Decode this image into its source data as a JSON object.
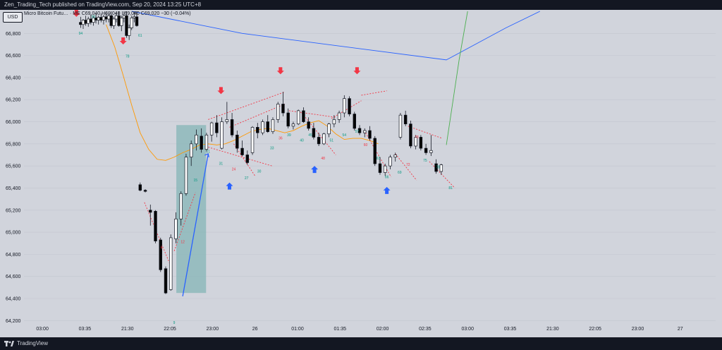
{
  "header": {
    "published": "Zen_Trading_Tech published on TradingView.com, Sep 20, 2024 13:25 UTC+8"
  },
  "legend": {
    "symbol": "Micro Bitcoin Futu… · ME",
    "ohlc": "C69,040  H69,040  L69,040  C69,020  −30 (−0.04%)",
    "currency": "USD"
  },
  "footer": {
    "brand": "TradingView"
  },
  "colors": {
    "up": "#ffffff",
    "down": "#000000",
    "bull_arrow": "#2962ff",
    "bear_arrow": "#f23645",
    "box": "#80b3b3",
    "dotted": "#f23645",
    "ema": "#ff9800",
    "blue_line": "#2962ff"
  },
  "chart_data": {
    "type": "candlestick",
    "y_ticks": [
      64200,
      64400,
      64600,
      64800,
      65000,
      65200,
      65400,
      65600,
      65800,
      66000,
      66200,
      66400,
      66600,
      66800
    ],
    "y_tick_labels": [
      "64,200",
      "64,400",
      "64,600",
      "64,800",
      "65,000",
      "65,200",
      "65,400",
      "65,600",
      "65,800",
      "66,000",
      "66,200",
      "66,400",
      "66,600",
      "66,800"
    ],
    "ylim": [
      64170,
      67000
    ],
    "x_ticks": [
      {
        "i": 3,
        "label": "03:00"
      },
      {
        "i": 13,
        "label": "03:35"
      },
      {
        "i": 23,
        "label": "21:30"
      },
      {
        "i": 33,
        "label": "22:05"
      },
      {
        "i": 43,
        "label": "23:00"
      },
      {
        "i": 53,
        "label": "26"
      },
      {
        "i": 63,
        "label": "01:00"
      },
      {
        "i": 73,
        "label": "01:35"
      },
      {
        "i": 83,
        "label": "02:00"
      },
      {
        "i": 93,
        "label": "02:35"
      },
      {
        "i": 103,
        "label": "03:00"
      },
      {
        "i": 113,
        "label": "03:35"
      },
      {
        "i": 123,
        "label": "21:30"
      },
      {
        "i": 133,
        "label": "22:05"
      },
      {
        "i": 143,
        "label": "23:00"
      },
      {
        "i": 153,
        "label": "27"
      }
    ],
    "x_count": 160,
    "candles": [
      {
        "o": 66900,
        "h": 66950,
        "l": 66850,
        "c": 66880
      },
      {
        "o": 66880,
        "h": 66930,
        "l": 66840,
        "c": 66920
      },
      {
        "o": 66920,
        "h": 66960,
        "l": 66870,
        "c": 66890
      },
      {
        "o": 66890,
        "h": 66950,
        "l": 66860,
        "c": 66930
      },
      {
        "o": 66930,
        "h": 66970,
        "l": 66880,
        "c": 66900
      },
      {
        "o": 66900,
        "h": 66960,
        "l": 66870,
        "c": 66940
      },
      {
        "o": 66940,
        "h": 66980,
        "l": 66890,
        "c": 66920
      },
      {
        "o": 66920,
        "h": 66960,
        "l": 66880,
        "c": 66945
      },
      {
        "o": 66945,
        "h": 66980,
        "l": 66900,
        "c": 66920
      },
      {
        "o": 66920,
        "h": 66970,
        "l": 66880,
        "c": 66950
      },
      {
        "o": 66950,
        "h": 66990,
        "l": 66900,
        "c": 66930
      },
      {
        "o": 66930,
        "h": 66980,
        "l": 66900,
        "c": 66960
      },
      {
        "o": 66960,
        "h": 67000,
        "l": 66850,
        "c": 66870
      },
      {
        "o": 66870,
        "h": 66950,
        "l": 66840,
        "c": 66930
      },
      {
        "o": 66930,
        "h": 66990,
        "l": 66900,
        "c": 66960
      },
      {
        "o": 66960,
        "h": 67000,
        "l": 66860,
        "c": 66870
      },
      {
        "o": 66870,
        "h": 66960,
        "l": 66820,
        "c": 66940
      },
      {
        "o": 66940,
        "h": 67000,
        "l": 66900,
        "c": 66960
      },
      {
        "o": 66960,
        "h": 67000,
        "l": 66760,
        "c": 66780
      },
      {
        "o": 66780,
        "h": 66880,
        "l": 66740,
        "c": 66850
      },
      {
        "o": 66850,
        "h": 66960,
        "l": 66830,
        "c": 66940
      },
      {
        "o": 66940,
        "h": 67000,
        "l": 66900,
        "c": 66950
      },
      {
        "o": 66950,
        "h": 67000,
        "l": 66860,
        "c": 66870
      },
      {
        "o": 65430,
        "h": 65450,
        "l": 65370,
        "c": 65380
      },
      {
        "o": 65380,
        "h": 65390,
        "l": 65360,
        "c": 65370
      },
      {
        "o": 65200,
        "h": 65250,
        "l": 65060,
        "c": 65180
      },
      {
        "o": 65190,
        "h": 65200,
        "l": 64900,
        "c": 64920
      },
      {
        "o": 64930,
        "h": 64950,
        "l": 64640,
        "c": 64660
      },
      {
        "o": 64670,
        "h": 64690,
        "l": 64440,
        "c": 64450
      },
      {
        "o": 64480,
        "h": 64980,
        "l": 64470,
        "c": 64950
      },
      {
        "o": 64940,
        "h": 65180,
        "l": 64900,
        "c": 65120
      },
      {
        "o": 65120,
        "h": 65370,
        "l": 65060,
        "c": 65350
      },
      {
        "o": 65350,
        "h": 65710,
        "l": 65330,
        "c": 65680
      },
      {
        "o": 65680,
        "h": 65830,
        "l": 65600,
        "c": 65800
      },
      {
        "o": 65800,
        "h": 65930,
        "l": 65740,
        "c": 65880
      },
      {
        "o": 65870,
        "h": 65940,
        "l": 65720,
        "c": 65750
      },
      {
        "o": 65750,
        "h": 65900,
        "l": 65730,
        "c": 65880
      },
      {
        "o": 65880,
        "h": 66000,
        "l": 65820,
        "c": 65990
      },
      {
        "o": 65990,
        "h": 66060,
        "l": 65860,
        "c": 65900
      },
      {
        "o": 65760,
        "h": 66040,
        "l": 65750,
        "c": 66000
      },
      {
        "o": 66000,
        "h": 66180,
        "l": 65980,
        "c": 66020
      },
      {
        "o": 66020,
        "h": 66080,
        "l": 65860,
        "c": 65880
      },
      {
        "o": 65880,
        "h": 65920,
        "l": 65720,
        "c": 65760
      },
      {
        "o": 65760,
        "h": 65830,
        "l": 65690,
        "c": 65700
      },
      {
        "o": 65700,
        "h": 65740,
        "l": 65610,
        "c": 65630
      },
      {
        "o": 65720,
        "h": 65960,
        "l": 65700,
        "c": 65950
      },
      {
        "o": 65950,
        "h": 65990,
        "l": 65850,
        "c": 65900
      },
      {
        "o": 65900,
        "h": 66020,
        "l": 65880,
        "c": 66000
      },
      {
        "o": 66000,
        "h": 66060,
        "l": 65900,
        "c": 65910
      },
      {
        "o": 65910,
        "h": 66040,
        "l": 65890,
        "c": 66020
      },
      {
        "o": 66020,
        "h": 66180,
        "l": 65990,
        "c": 66160
      },
      {
        "o": 66160,
        "h": 66270,
        "l": 66050,
        "c": 66080
      },
      {
        "o": 66080,
        "h": 66120,
        "l": 65940,
        "c": 65960
      },
      {
        "o": 65960,
        "h": 66000,
        "l": 65930,
        "c": 65980
      },
      {
        "o": 65980,
        "h": 66110,
        "l": 65970,
        "c": 66100
      },
      {
        "o": 66100,
        "h": 66130,
        "l": 65990,
        "c": 66000
      },
      {
        "o": 66000,
        "h": 66040,
        "l": 65920,
        "c": 65940
      },
      {
        "o": 65940,
        "h": 65990,
        "l": 65840,
        "c": 65860
      },
      {
        "o": 65860,
        "h": 65900,
        "l": 65780,
        "c": 65800
      },
      {
        "o": 65800,
        "h": 65900,
        "l": 65790,
        "c": 65890
      },
      {
        "o": 65890,
        "h": 65990,
        "l": 65860,
        "c": 65980
      },
      {
        "o": 65980,
        "h": 66060,
        "l": 65950,
        "c": 66020
      },
      {
        "o": 66020,
        "h": 66100,
        "l": 65990,
        "c": 66080
      },
      {
        "o": 66080,
        "h": 66240,
        "l": 66040,
        "c": 66210
      },
      {
        "o": 66210,
        "h": 66230,
        "l": 66050,
        "c": 66070
      },
      {
        "o": 66070,
        "h": 66090,
        "l": 65920,
        "c": 65940
      },
      {
        "o": 65940,
        "h": 65970,
        "l": 65880,
        "c": 65900
      },
      {
        "o": 65900,
        "h": 65940,
        "l": 65860,
        "c": 65920
      },
      {
        "o": 65920,
        "h": 65960,
        "l": 65830,
        "c": 65850
      },
      {
        "o": 65850,
        "h": 65870,
        "l": 65600,
        "c": 65620
      },
      {
        "o": 65620,
        "h": 65680,
        "l": 65520,
        "c": 65540
      },
      {
        "o": 65540,
        "h": 65620,
        "l": 65510,
        "c": 65600
      },
      {
        "o": 65600,
        "h": 65700,
        "l": 65570,
        "c": 65680
      },
      {
        "o": 65680,
        "h": 65720,
        "l": 65640,
        "c": 65700
      },
      {
        "o": 65860,
        "h": 66080,
        "l": 65840,
        "c": 66060
      },
      {
        "o": 66060,
        "h": 66100,
        "l": 65960,
        "c": 65980
      },
      {
        "o": 65980,
        "h": 66010,
        "l": 65760,
        "c": 65780
      },
      {
        "o": 65780,
        "h": 65880,
        "l": 65750,
        "c": 65860
      },
      {
        "o": 65860,
        "h": 65880,
        "l": 65740,
        "c": 65760
      },
      {
        "o": 65760,
        "h": 65800,
        "l": 65700,
        "c": 65720
      },
      {
        "o": 65720,
        "h": 65880,
        "l": 65690,
        "c": 65740
      },
      {
        "o": 65620,
        "h": 65660,
        "l": 65530,
        "c": 65550
      },
      {
        "o": 65550,
        "h": 65620,
        "l": 65520,
        "c": 65610
      }
    ],
    "ema": [
      [
        18,
        66880
      ],
      [
        20,
        66680
      ],
      [
        22,
        66420
      ],
      [
        24,
        66150
      ],
      [
        26,
        65900
      ],
      [
        28,
        65750
      ],
      [
        30,
        65660
      ],
      [
        32,
        65650
      ],
      [
        34,
        65680
      ],
      [
        36,
        65720
      ],
      [
        38,
        65750
      ],
      [
        40,
        65790
      ],
      [
        42,
        65800
      ],
      [
        44,
        65790
      ],
      [
        46,
        65800
      ],
      [
        48,
        65830
      ],
      [
        50,
        65870
      ],
      [
        52,
        65910
      ],
      [
        54,
        65930
      ],
      [
        56,
        65940
      ],
      [
        58,
        65920
      ],
      [
        60,
        65900
      ],
      [
        62,
        65920
      ],
      [
        64,
        65960
      ],
      [
        66,
        65990
      ],
      [
        68,
        66010
      ],
      [
        70,
        65960
      ],
      [
        72,
        65890
      ],
      [
        74,
        65840
      ],
      [
        76,
        65850
      ],
      [
        78,
        65850
      ],
      [
        80,
        65830
      ],
      [
        82,
        65800
      ]
    ],
    "up_arrows": [
      {
        "i": 47,
        "v": 65450
      },
      {
        "i": 67,
        "v": 65600
      },
      {
        "i": 84,
        "v": 65410
      }
    ],
    "down_arrows": [
      {
        "i": 45,
        "v": 66250
      },
      {
        "i": 59,
        "v": 66430
      },
      {
        "i": 77,
        "v": 66430
      },
      {
        "i": 22,
        "v": 66700
      },
      {
        "i": 11,
        "v": 66950
      }
    ],
    "labels": [
      {
        "i": 12,
        "v": 66790,
        "t": "94",
        "c": "#089981"
      },
      {
        "i": 15,
        "v": 66940,
        "t": "93",
        "c": "#089981"
      },
      {
        "i": 23,
        "v": 66580,
        "t": "78",
        "c": "#089981"
      },
      {
        "i": 26,
        "v": 66770,
        "t": "61",
        "c": "#089981"
      },
      {
        "i": 34,
        "v": 64170,
        "t": "9",
        "c": "#089981"
      },
      {
        "i": 31,
        "v": 64850,
        "t": "6",
        "c": "#f23645"
      },
      {
        "i": 36,
        "v": 64900,
        "t": "12",
        "c": "#f23645"
      },
      {
        "i": 39,
        "v": 65460,
        "t": "15",
        "c": "#089981"
      },
      {
        "i": 42,
        "v": 65720,
        "t": "21",
        "c": "#089981"
      },
      {
        "i": 45,
        "v": 65610,
        "t": "31",
        "c": "#089981"
      },
      {
        "i": 48,
        "v": 65560,
        "t": "24",
        "c": "#f23645"
      },
      {
        "i": 51,
        "v": 65480,
        "t": "27",
        "c": "#089981"
      },
      {
        "i": 54,
        "v": 65540,
        "t": "30",
        "c": "#089981"
      },
      {
        "i": 57,
        "v": 65750,
        "t": "33",
        "c": "#089981"
      },
      {
        "i": 59,
        "v": 65840,
        "t": "36",
        "c": "#f23645"
      },
      {
        "i": 61,
        "v": 65870,
        "t": "39",
        "c": "#089981"
      },
      {
        "i": 64,
        "v": 65820,
        "t": "40",
        "c": "#089981"
      },
      {
        "i": 66,
        "v": 65870,
        "t": "45",
        "c": "#089981"
      },
      {
        "i": 69,
        "v": 65660,
        "t": "48",
        "c": "#f23645"
      },
      {
        "i": 71,
        "v": 65820,
        "t": "51",
        "c": "#089981"
      },
      {
        "i": 74,
        "v": 65870,
        "t": "54",
        "c": "#089981"
      },
      {
        "i": 77,
        "v": 65900,
        "t": "57",
        "c": "#089981"
      },
      {
        "i": 79,
        "v": 65780,
        "t": "60",
        "c": "#f23645"
      },
      {
        "i": 82,
        "v": 65660,
        "t": "63",
        "c": "#089981"
      },
      {
        "i": 84,
        "v": 65490,
        "t": "66",
        "c": "#089981"
      },
      {
        "i": 87,
        "v": 65530,
        "t": "69",
        "c": "#089981"
      },
      {
        "i": 89,
        "v": 65600,
        "t": "72",
        "c": "#f23645"
      },
      {
        "i": 91,
        "v": 65850,
        "t": "78",
        "c": "#f23645"
      },
      {
        "i": 93,
        "v": 65640,
        "t": "75",
        "c": "#089981"
      },
      {
        "i": 96,
        "v": 65580,
        "t": "78",
        "c": "#089981"
      },
      {
        "i": 99,
        "v": 65390,
        "t": "81",
        "c": "#089981"
      }
    ],
    "box": {
      "i0": 34.5,
      "i1": 41.5,
      "v0": 64450,
      "v1": 65970
    },
    "bull_line": [
      [
        36,
        64420
      ],
      [
        42,
        65710
      ]
    ],
    "blue_line": [
      [
        24,
        67000
      ],
      [
        50,
        66800
      ],
      [
        80,
        66650
      ],
      [
        98,
        66560
      ],
      [
        112,
        66850
      ],
      [
        120,
        67000
      ]
    ],
    "green_line": [
      [
        98,
        65790
      ],
      [
        101,
        66560
      ],
      [
        103,
        67000
      ]
    ],
    "dotted_lines": [
      [
        [
          27,
          65270
        ],
        [
          33,
          64710
        ]
      ],
      [
        [
          34,
          64830
        ],
        [
          39,
          65360
        ]
      ],
      [
        [
          42,
          66020
        ],
        [
          60,
          66270
        ]
      ],
      [
        [
          47,
          65950
        ],
        [
          60,
          66160
        ]
      ],
      [
        [
          42,
          65770
        ],
        [
          57,
          65600
        ]
      ],
      [
        [
          48,
          65800
        ],
        [
          53,
          65510
        ]
      ],
      [
        [
          61,
          66100
        ],
        [
          72,
          66040
        ]
      ],
      [
        [
          64,
          66080
        ],
        [
          72,
          65700
        ]
      ],
      [
        [
          71,
          66030
        ],
        [
          78,
          66190
        ]
      ],
      [
        [
          78,
          66240
        ],
        [
          84,
          66280
        ]
      ],
      [
        [
          79,
          65900
        ],
        [
          85,
          65500
        ]
      ],
      [
        [
          86,
          65710
        ],
        [
          91,
          65470
        ]
      ],
      [
        [
          89,
          65960
        ],
        [
          97,
          65850
        ]
      ],
      [
        [
          94,
          65640
        ],
        [
          100,
          65400
        ]
      ]
    ]
  }
}
